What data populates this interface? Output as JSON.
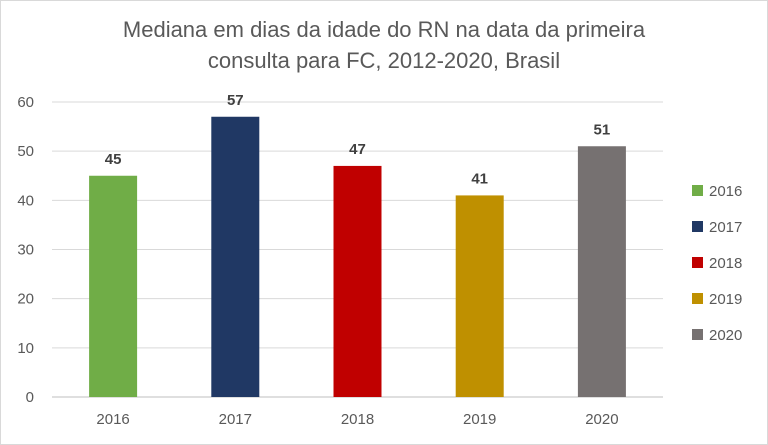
{
  "chart_data": {
    "type": "bar",
    "title_line1": "Mediana em dias da idade do RN na data da primeira",
    "title_line2": "consulta para FC, 2012-2020, Brasil",
    "categories": [
      "2016",
      "2017",
      "2018",
      "2019",
      "2020"
    ],
    "values": [
      45,
      57,
      47,
      41,
      51
    ],
    "colors": [
      "#70ad47",
      "#203864",
      "#c00000",
      "#bf9000",
      "#767171"
    ],
    "ylim": [
      0,
      60
    ],
    "yticks": [
      "0",
      "10",
      "20",
      "30",
      "40",
      "50",
      "60"
    ],
    "grid": true,
    "legend_position": "right",
    "legend": [
      "2016",
      "2017",
      "2018",
      "2019",
      "2020"
    ],
    "xlabel": "",
    "ylabel": ""
  }
}
